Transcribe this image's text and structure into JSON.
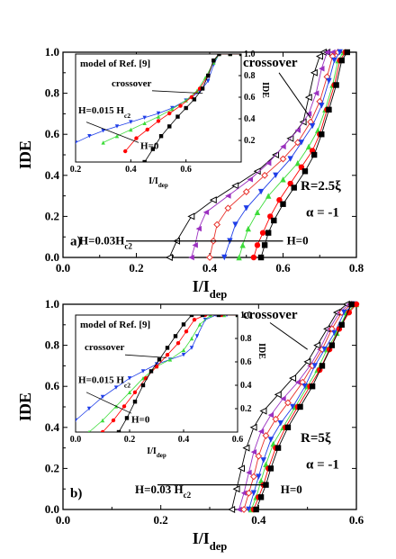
{
  "chart_data": [
    {
      "type": "line",
      "panel_label": "a)",
      "xlabel": "I/I",
      "xlabel_sub": "dep",
      "ylabel": "IDE",
      "xlim": [
        0.0,
        0.8
      ],
      "ylim": [
        0.0,
        1.0
      ],
      "xticks": [
        "0.0",
        "0.2",
        "0.4",
        "0.6",
        "0.8"
      ],
      "yticks": [
        "0.0",
        "0.2",
        "0.4",
        "0.6",
        "0.8",
        "1.0"
      ],
      "params": [
        "R=2.5ξ",
        "α = -1"
      ],
      "annotations": {
        "crossover": "crossover",
        "h_label": "H=0.03H",
        "h_label_sub": "c2",
        "h0_label": "H=0"
      },
      "series": [
        {
          "color": "#000000",
          "marker": "open-triangle-left",
          "x": [
            0.29,
            0.31,
            0.35,
            0.41,
            0.47,
            0.53,
            0.58,
            0.62,
            0.655,
            0.67,
            0.685,
            0.7,
            0.71,
            0.72
          ],
          "y": [
            0.0,
            0.08,
            0.2,
            0.28,
            0.35,
            0.42,
            0.5,
            0.58,
            0.66,
            0.78,
            0.9,
            0.98,
            1.0,
            1.0
          ]
        },
        {
          "color": "#9b30c0",
          "marker": "triangle-left",
          "x": [
            0.35,
            0.36,
            0.37,
            0.39,
            0.45,
            0.51,
            0.56,
            0.6,
            0.64,
            0.67,
            0.69,
            0.705,
            0.72,
            0.735
          ],
          "y": [
            0.0,
            0.06,
            0.14,
            0.22,
            0.3,
            0.38,
            0.46,
            0.54,
            0.62,
            0.7,
            0.8,
            0.92,
            1.0,
            1.0
          ]
        },
        {
          "color": "#e8302a",
          "marker": "open-diamond",
          "x": [
            0.4,
            0.41,
            0.42,
            0.45,
            0.5,
            0.55,
            0.6,
            0.64,
            0.675,
            0.7,
            0.72,
            0.735,
            0.75
          ],
          "y": [
            0.0,
            0.08,
            0.16,
            0.24,
            0.32,
            0.4,
            0.48,
            0.56,
            0.66,
            0.76,
            0.88,
            0.98,
            1.0
          ]
        },
        {
          "color": "#1f3ee8",
          "marker": "triangle-down",
          "x": [
            0.44,
            0.455,
            0.47,
            0.5,
            0.54,
            0.58,
            0.62,
            0.65,
            0.68,
            0.705,
            0.725,
            0.74,
            0.755
          ],
          "y": [
            0.0,
            0.08,
            0.16,
            0.24,
            0.32,
            0.4,
            0.48,
            0.56,
            0.64,
            0.74,
            0.86,
            0.96,
            1.0
          ]
        },
        {
          "color": "#3ddc3a",
          "marker": "triangle-up",
          "x": [
            0.48,
            0.49,
            0.505,
            0.53,
            0.56,
            0.6,
            0.64,
            0.67,
            0.695,
            0.715,
            0.735,
            0.75,
            0.765
          ],
          "y": [
            0.0,
            0.06,
            0.14,
            0.22,
            0.3,
            0.38,
            0.46,
            0.54,
            0.62,
            0.72,
            0.84,
            0.96,
            1.0
          ]
        },
        {
          "color": "#ff0000",
          "marker": "circle",
          "x": [
            0.52,
            0.53,
            0.545,
            0.565,
            0.59,
            0.62,
            0.65,
            0.68,
            0.7,
            0.72,
            0.74,
            0.755,
            0.77
          ],
          "y": [
            0.0,
            0.06,
            0.12,
            0.2,
            0.28,
            0.36,
            0.44,
            0.52,
            0.6,
            0.72,
            0.84,
            0.96,
            1.0
          ]
        },
        {
          "color": "#000000",
          "marker": "square",
          "x": [
            0.54,
            0.55,
            0.56,
            0.575,
            0.6,
            0.63,
            0.66,
            0.685,
            0.705,
            0.725,
            0.745,
            0.76,
            0.775
          ],
          "y": [
            0.0,
            0.06,
            0.12,
            0.18,
            0.26,
            0.34,
            0.42,
            0.5,
            0.6,
            0.72,
            0.84,
            0.96,
            1.0
          ]
        }
      ],
      "inset": {
        "title": "model of Ref. [9]",
        "xlabel": "I/I",
        "xlabel_sub": "dep",
        "ylabel": "IDE",
        "xlim": [
          0.2,
          0.8
        ],
        "ylim": [
          0.0,
          1.0
        ],
        "xticks": [
          "0.2",
          "0.4",
          "0.6"
        ],
        "yticks": [
          "0.2",
          "0.4",
          "0.6",
          "0.8",
          "1.0"
        ],
        "crossover": "crossover",
        "h_label": "H=0.015 H",
        "h_label_sub": "c2",
        "h0_label": "H=0",
        "series": [
          {
            "color": "#1f3ee8",
            "marker": "triangle-down",
            "x": [
              0.2,
              0.25,
              0.3,
              0.35,
              0.4,
              0.45,
              0.5,
              0.55,
              0.6,
              0.65,
              0.68,
              0.7,
              0.72,
              0.76,
              0.8
            ],
            "y": [
              0.18,
              0.24,
              0.29,
              0.33,
              0.37,
              0.41,
              0.45,
              0.5,
              0.57,
              0.65,
              0.75,
              0.9,
              1.0,
              1.0,
              1.0
            ]
          },
          {
            "color": "#3ddc3a",
            "marker": "triangle-up",
            "x": [
              0.3,
              0.35,
              0.4,
              0.45,
              0.5,
              0.55,
              0.6,
              0.64,
              0.67,
              0.7,
              0.72,
              0.76,
              0.8
            ],
            "y": [
              0.18,
              0.24,
              0.3,
              0.36,
              0.42,
              0.49,
              0.57,
              0.66,
              0.78,
              0.92,
              1.0,
              1.0,
              1.0
            ]
          },
          {
            "color": "#ff0000",
            "marker": "circle",
            "x": [
              0.38,
              0.42,
              0.46,
              0.5,
              0.54,
              0.58,
              0.62,
              0.65,
              0.68,
              0.7,
              0.72,
              0.76,
              0.8
            ],
            "y": [
              0.1,
              0.22,
              0.3,
              0.38,
              0.45,
              0.52,
              0.6,
              0.68,
              0.8,
              0.94,
              1.0,
              1.0,
              1.0
            ]
          },
          {
            "color": "#000000",
            "marker": "square",
            "x": [
              0.45,
              0.48,
              0.51,
              0.54,
              0.57,
              0.6,
              0.63,
              0.66,
              0.68,
              0.7,
              0.72,
              0.76,
              0.8
            ],
            "y": [
              0.0,
              0.12,
              0.24,
              0.33,
              0.42,
              0.5,
              0.58,
              0.68,
              0.8,
              0.94,
              1.0,
              1.0,
              1.0
            ]
          }
        ]
      }
    },
    {
      "type": "line",
      "panel_label": "b)",
      "xlabel": "I/I",
      "xlabel_sub": "dep",
      "ylabel": "IDE",
      "xlim": [
        0.0,
        0.6
      ],
      "ylim": [
        0.0,
        1.0
      ],
      "xticks": [
        "0.0",
        "0.2",
        "0.4",
        "0.6"
      ],
      "yticks": [
        "0.0",
        "0.2",
        "0.4",
        "0.6",
        "0.8",
        "1.0"
      ],
      "params": [
        "R=5ξ",
        "α = -1"
      ],
      "annotations": {
        "crossover": "crossover",
        "h_label": "H=0.03 H",
        "h_label_sub": "c2",
        "h0_label": "H=0"
      },
      "series": [
        {
          "color": "#000000",
          "marker": "open-triangle-left",
          "x": [
            0.345,
            0.355,
            0.365,
            0.375,
            0.39,
            0.41,
            0.44,
            0.47,
            0.5,
            0.52,
            0.54,
            0.56,
            0.58
          ],
          "y": [
            0.0,
            0.1,
            0.2,
            0.3,
            0.4,
            0.48,
            0.56,
            0.64,
            0.72,
            0.8,
            0.88,
            0.96,
            1.0
          ]
        },
        {
          "color": "#9b30c0",
          "marker": "triangle-left",
          "x": [
            0.36,
            0.37,
            0.38,
            0.39,
            0.405,
            0.425,
            0.45,
            0.48,
            0.505,
            0.525,
            0.545,
            0.565,
            0.585
          ],
          "y": [
            0.0,
            0.08,
            0.18,
            0.28,
            0.38,
            0.46,
            0.54,
            0.62,
            0.7,
            0.78,
            0.88,
            0.96,
            1.0
          ]
        },
        {
          "color": "#e8302a",
          "marker": "open-diamond",
          "x": [
            0.37,
            0.38,
            0.39,
            0.4,
            0.415,
            0.435,
            0.46,
            0.49,
            0.51,
            0.53,
            0.55,
            0.57,
            0.59
          ],
          "y": [
            0.0,
            0.08,
            0.16,
            0.26,
            0.36,
            0.44,
            0.52,
            0.62,
            0.7,
            0.78,
            0.88,
            0.96,
            1.0
          ]
        },
        {
          "color": "#1f3ee8",
          "marker": "triangle-down",
          "x": [
            0.38,
            0.39,
            0.4,
            0.41,
            0.425,
            0.445,
            0.47,
            0.495,
            0.515,
            0.535,
            0.555,
            0.575,
            0.595
          ],
          "y": [
            0.0,
            0.08,
            0.16,
            0.24,
            0.34,
            0.42,
            0.5,
            0.6,
            0.7,
            0.78,
            0.86,
            0.96,
            1.0
          ]
        },
        {
          "color": "#3ddc3a",
          "marker": "triangle-up",
          "x": [
            0.385,
            0.395,
            0.405,
            0.415,
            0.43,
            0.45,
            0.475,
            0.5,
            0.52,
            0.54,
            0.56,
            0.58,
            0.6
          ],
          "y": [
            0.0,
            0.06,
            0.14,
            0.22,
            0.32,
            0.4,
            0.5,
            0.6,
            0.68,
            0.78,
            0.86,
            0.96,
            1.0
          ]
        },
        {
          "color": "#ff0000",
          "marker": "circle",
          "x": [
            0.39,
            0.4,
            0.41,
            0.42,
            0.435,
            0.455,
            0.48,
            0.505,
            0.525,
            0.545,
            0.565,
            0.585,
            0.6
          ],
          "y": [
            0.0,
            0.06,
            0.12,
            0.2,
            0.3,
            0.4,
            0.5,
            0.6,
            0.68,
            0.78,
            0.88,
            0.96,
            1.0
          ]
        },
        {
          "color": "#000000",
          "marker": "square",
          "x": [
            0.395,
            0.405,
            0.415,
            0.425,
            0.44,
            0.46,
            0.485,
            0.51,
            0.53,
            0.55,
            0.57,
            0.59
          ],
          "y": [
            0.0,
            0.06,
            0.12,
            0.2,
            0.3,
            0.4,
            0.5,
            0.6,
            0.7,
            0.8,
            0.9,
            1.0
          ]
        }
      ],
      "inset": {
        "title": "model of Ref. [9]",
        "xlabel": "I/I",
        "xlabel_sub": "dep",
        "ylabel": "IDE",
        "xlim": [
          0.0,
          0.6
        ],
        "ylim": [
          0.0,
          1.0
        ],
        "xticks": [
          "0.0",
          "0.2",
          "0.4",
          "0.6"
        ],
        "yticks": [
          "0.2",
          "0.4",
          "0.6",
          "0.8",
          "1.0"
        ],
        "crossover": "crossover",
        "h_label": "H=0.015 H",
        "h_label_sub": "c2",
        "h0_label": "H=0",
        "series": [
          {
            "color": "#1f3ee8",
            "marker": "triangle-down",
            "x": [
              0.0,
              0.05,
              0.1,
              0.15,
              0.2,
              0.25,
              0.3,
              0.35,
              0.4,
              0.43,
              0.45,
              0.48,
              0.52,
              0.56,
              0.6
            ],
            "y": [
              0.1,
              0.2,
              0.3,
              0.38,
              0.46,
              0.52,
              0.58,
              0.62,
              0.66,
              0.72,
              0.82,
              0.96,
              1.0,
              1.0,
              1.0
            ]
          },
          {
            "color": "#3ddc3a",
            "marker": "triangle-up",
            "x": [
              0.05,
              0.1,
              0.15,
              0.2,
              0.25,
              0.3,
              0.35,
              0.4,
              0.43,
              0.46,
              0.5,
              0.55,
              0.6
            ],
            "y": [
              0.0,
              0.1,
              0.22,
              0.34,
              0.46,
              0.56,
              0.62,
              0.7,
              0.8,
              0.92,
              1.0,
              1.0,
              1.0
            ]
          },
          {
            "color": "#ff0000",
            "marker": "circle",
            "x": [
              0.1,
              0.14,
              0.18,
              0.22,
              0.26,
              0.3,
              0.34,
              0.38,
              0.41,
              0.44,
              0.48,
              0.54,
              0.6
            ],
            "y": [
              0.0,
              0.1,
              0.22,
              0.34,
              0.46,
              0.56,
              0.66,
              0.76,
              0.86,
              0.96,
              1.0,
              1.0,
              1.0
            ]
          },
          {
            "color": "#000000",
            "marker": "square",
            "x": [
              0.16,
              0.19,
              0.22,
              0.25,
              0.28,
              0.31,
              0.34,
              0.37,
              0.4,
              0.43,
              0.47,
              0.53,
              0.6
            ],
            "y": [
              0.0,
              0.12,
              0.26,
              0.4,
              0.52,
              0.62,
              0.72,
              0.82,
              0.92,
              1.0,
              1.0,
              1.0,
              1.0
            ]
          }
        ]
      }
    }
  ]
}
